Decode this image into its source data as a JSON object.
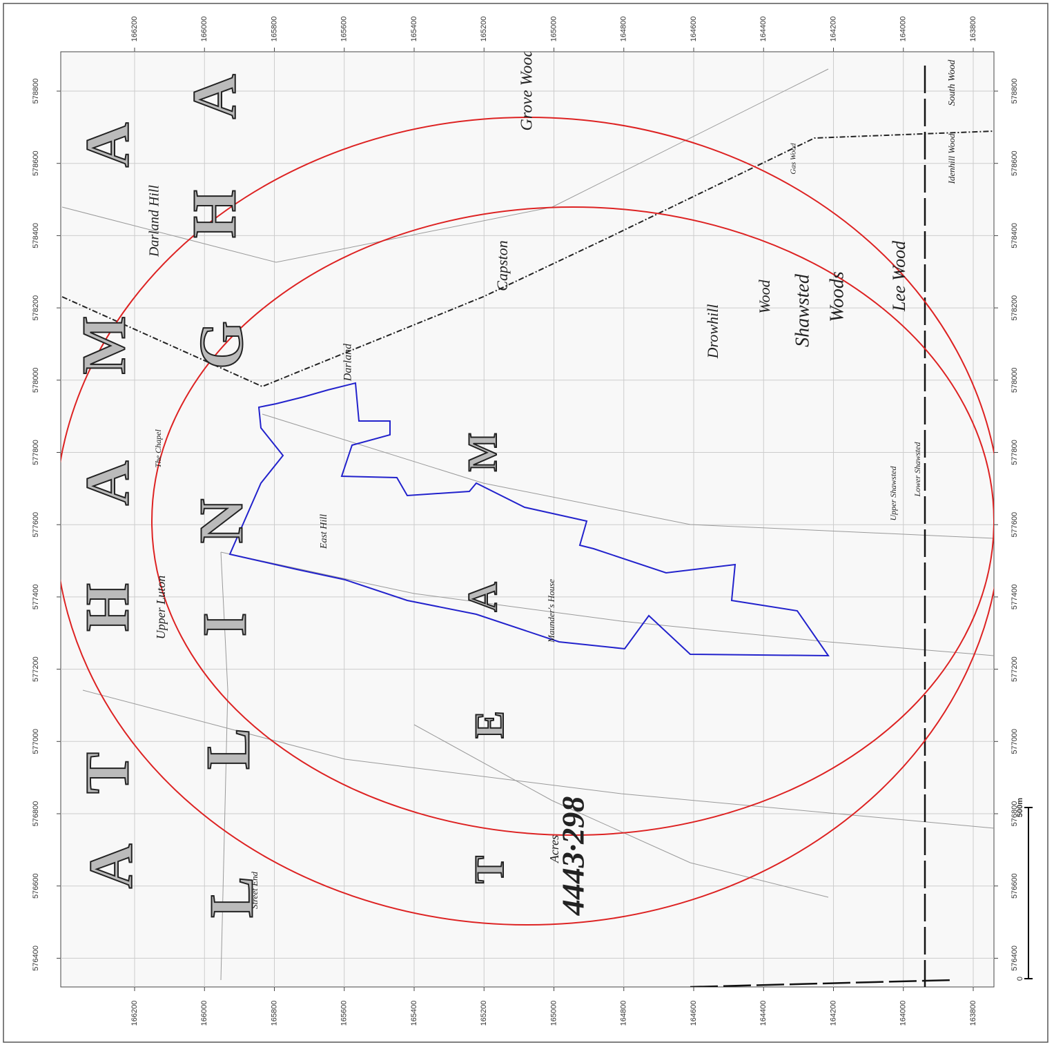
{
  "grid": {
    "eastings": [
      578800,
      578600,
      578400,
      578200,
      578000,
      577800,
      577600,
      577400,
      577200,
      577000,
      576800,
      576600,
      576400
    ],
    "northings": [
      166200,
      166000,
      165800,
      165600,
      165400,
      165200,
      165000,
      164800,
      164600,
      164400,
      164200,
      164000,
      163800
    ]
  },
  "places": [
    "Darland Hill",
    "Upper Luton",
    "East Hill",
    "Darland",
    "Capston",
    "Grove Wood",
    "Drowhill",
    "Wood",
    "Shawsted",
    "Woods",
    "Lee Wood",
    "Upper Shawsted",
    "Lower Shawsted",
    "Maunder's House",
    "Street End",
    "Gas Wood",
    "Idenhill Wood",
    "South Wood",
    "The Chapel"
  ],
  "lettering": [
    "A",
    "M",
    "A",
    "H",
    "T",
    "A",
    "A",
    "H",
    "G",
    "N",
    "I",
    "L",
    "L",
    "M",
    "A",
    "E",
    "T"
  ],
  "acreage": {
    "label": "Acres",
    "value": "4443·298"
  },
  "scale_bar": {
    "start": "0",
    "end": "500m"
  }
}
